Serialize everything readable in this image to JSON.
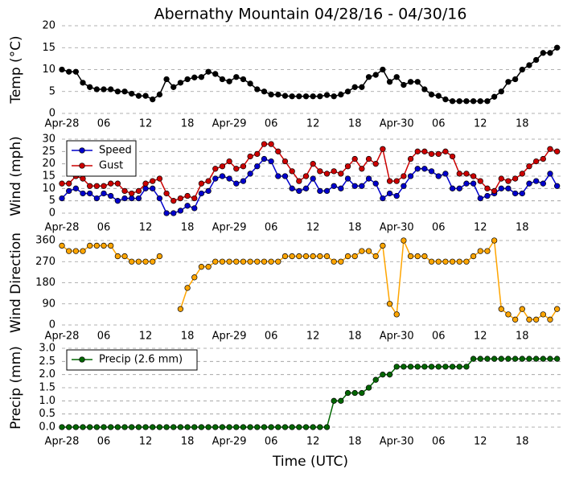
{
  "chart_data": [
    {
      "type": "line",
      "title": "Abernathy Mountain 04/28/16 - 04/30/16",
      "ylabel": "Temp (°C)",
      "x": [
        0,
        1,
        2,
        3,
        4,
        5,
        6,
        7,
        8,
        9,
        10,
        11,
        12,
        13,
        14,
        15,
        16,
        17,
        18,
        19,
        20,
        21,
        22,
        23,
        24,
        25,
        26,
        27,
        28,
        29,
        30,
        31,
        32,
        33,
        34,
        35,
        36,
        37,
        38,
        39,
        40,
        41,
        42,
        43,
        44,
        45,
        46,
        47,
        48,
        49,
        50,
        51,
        52,
        53,
        54,
        55,
        56,
        57,
        58,
        59,
        60,
        61,
        62,
        63,
        64,
        65,
        66,
        67,
        68,
        69,
        70,
        71
      ],
      "values": [
        10,
        9.5,
        9.5,
        7,
        6,
        5.5,
        5.5,
        5.5,
        5,
        5,
        4.5,
        4,
        4,
        3.2,
        4.3,
        7.8,
        6,
        7,
        7.8,
        8.2,
        8.3,
        9.5,
        9,
        7.8,
        7.3,
        8.3,
        7.8,
        6.8,
        5.5,
        5,
        4.3,
        4.3,
        4,
        3.9,
        3.9,
        3.9,
        3.9,
        3.9,
        4.2,
        3.9,
        4.3,
        5,
        6,
        6,
        8.3,
        8.8,
        10,
        7.2,
        8.3,
        6.5,
        7.2,
        7.2,
        5.5,
        4.3,
        4,
        3.2,
        2.8,
        2.8,
        2.8,
        2.8,
        2.8,
        2.8,
        3.8,
        5,
        7.2,
        7.8,
        10,
        11,
        12.2,
        13.8,
        13.8,
        15
      ],
      "color": "#000000",
      "xlim": [
        0,
        71.5
      ],
      "ylim": [
        0,
        20
      ],
      "yticks": [
        0,
        5,
        10,
        15,
        20
      ],
      "xticks": [
        {
          "value": 0,
          "label": "Apr-28"
        },
        {
          "value": 6,
          "label": "06"
        },
        {
          "value": 12,
          "label": "12"
        },
        {
          "value": 18,
          "label": "18"
        },
        {
          "value": 24,
          "label": "Apr-29"
        },
        {
          "value": 30,
          "label": "06"
        },
        {
          "value": 36,
          "label": "12"
        },
        {
          "value": 42,
          "label": "18"
        },
        {
          "value": 48,
          "label": "Apr-30"
        },
        {
          "value": 54,
          "label": "06"
        },
        {
          "value": 60,
          "label": "12"
        },
        {
          "value": 66,
          "label": "18"
        }
      ],
      "grid": true
    },
    {
      "type": "line",
      "ylabel": "Wind (mph)",
      "x": [
        0,
        1,
        2,
        3,
        4,
        5,
        6,
        7,
        8,
        9,
        10,
        11,
        12,
        13,
        14,
        15,
        16,
        17,
        18,
        19,
        20,
        21,
        22,
        23,
        24,
        25,
        26,
        27,
        28,
        29,
        30,
        31,
        32,
        33,
        34,
        35,
        36,
        37,
        38,
        39,
        40,
        41,
        42,
        43,
        44,
        45,
        46,
        47,
        48,
        49,
        50,
        51,
        52,
        53,
        54,
        55,
        56,
        57,
        58,
        59,
        60,
        61,
        62,
        63,
        64,
        65,
        66,
        67,
        68,
        69,
        70,
        71
      ],
      "series": [
        {
          "name": "Speed",
          "color": "#0000cc",
          "values": [
            6,
            9,
            10,
            8,
            8,
            6,
            8,
            7,
            5,
            6,
            6,
            6,
            10,
            10,
            6,
            0,
            0,
            1,
            3,
            2,
            8,
            9,
            14,
            15,
            14,
            12,
            13,
            16,
            19,
            22,
            21,
            15,
            15,
            10,
            9,
            10,
            14,
            9,
            9,
            11,
            10,
            14,
            11,
            11,
            14,
            12,
            6,
            8,
            7,
            11,
            15,
            18,
            18,
            17,
            15,
            16,
            10,
            10,
            12,
            12,
            6,
            7,
            8,
            10,
            10,
            8,
            8,
            12,
            13,
            12,
            16,
            11
          ]
        },
        {
          "name": "Gust",
          "color": "#cc0000",
          "values": [
            12,
            12,
            15,
            14,
            11,
            11,
            11,
            12,
            12,
            9,
            8,
            9,
            12,
            13,
            14,
            8,
            5,
            6,
            7,
            6,
            12,
            13,
            18,
            19,
            21,
            18,
            19,
            23,
            24,
            28,
            28,
            25,
            21,
            17,
            13,
            15,
            20,
            17,
            16,
            17,
            16,
            19,
            22,
            18,
            22,
            20,
            26,
            13,
            13,
            15,
            22,
            25,
            25,
            24,
            24,
            25,
            23,
            16,
            16,
            15,
            13,
            10,
            9,
            14,
            13,
            14,
            16,
            19,
            21,
            22,
            26,
            25
          ]
        }
      ],
      "xlim": [
        0,
        71.5
      ],
      "ylim": [
        0,
        30
      ],
      "yticks": [
        0,
        5,
        10,
        15,
        20,
        25,
        30
      ],
      "xticks": [
        {
          "value": 0,
          "label": "Apr-28"
        },
        {
          "value": 6,
          "label": "06"
        },
        {
          "value": 12,
          "label": "12"
        },
        {
          "value": 18,
          "label": "18"
        },
        {
          "value": 24,
          "label": "Apr-29"
        },
        {
          "value": 30,
          "label": "06"
        },
        {
          "value": 36,
          "label": "12"
        },
        {
          "value": 42,
          "label": "18"
        },
        {
          "value": 48,
          "label": "Apr-30"
        },
        {
          "value": 54,
          "label": "06"
        },
        {
          "value": 60,
          "label": "12"
        },
        {
          "value": 66,
          "label": "18"
        }
      ],
      "grid": true,
      "legend": "upper left"
    },
    {
      "type": "line",
      "ylabel": "Wind Direction",
      "x": [
        0,
        1,
        2,
        3,
        4,
        5,
        6,
        7,
        8,
        9,
        10,
        11,
        12,
        13,
        14,
        15,
        16,
        17,
        18,
        19,
        20,
        21,
        22,
        23,
        24,
        25,
        26,
        27,
        28,
        29,
        30,
        31,
        32,
        33,
        34,
        35,
        36,
        37,
        38,
        39,
        40,
        41,
        42,
        43,
        44,
        45,
        46,
        47,
        48,
        49,
        50,
        51,
        52,
        53,
        54,
        55,
        56,
        57,
        58,
        59,
        60,
        61,
        62,
        63,
        64,
        65,
        66,
        67,
        68,
        69,
        70,
        71
      ],
      "values": [
        338,
        315,
        315,
        315,
        338,
        338,
        338,
        338,
        293,
        293,
        270,
        270,
        270,
        270,
        293,
        null,
        null,
        68,
        158,
        203,
        248,
        248,
        270,
        270,
        270,
        270,
        270,
        270,
        270,
        270,
        270,
        270,
        293,
        293,
        293,
        293,
        293,
        293,
        293,
        270,
        270,
        293,
        293,
        315,
        315,
        293,
        338,
        90,
        45,
        360,
        293,
        293,
        293,
        270,
        270,
        270,
        270,
        270,
        270,
        293,
        315,
        315,
        360,
        68,
        45,
        23,
        68,
        23,
        23,
        45,
        23,
        68
      ],
      "color": "#ffa500",
      "xlim": [
        0,
        71.5
      ],
      "ylim": [
        0,
        360
      ],
      "yticks": [
        0,
        90,
        180,
        270,
        360
      ],
      "xticks": [
        {
          "value": 0,
          "label": "Apr-28"
        },
        {
          "value": 6,
          "label": "06"
        },
        {
          "value": 12,
          "label": "12"
        },
        {
          "value": 18,
          "label": "18"
        },
        {
          "value": 24,
          "label": "Apr-29"
        },
        {
          "value": 30,
          "label": "06"
        },
        {
          "value": 36,
          "label": "12"
        },
        {
          "value": 42,
          "label": "18"
        },
        {
          "value": 48,
          "label": "Apr-30"
        },
        {
          "value": 54,
          "label": "06"
        },
        {
          "value": 60,
          "label": "12"
        },
        {
          "value": 66,
          "label": "18"
        }
      ],
      "grid": true
    },
    {
      "type": "line",
      "ylabel": "Precip (mm)",
      "xlabel": "Time (UTC)",
      "x": [
        0,
        1,
        2,
        3,
        4,
        5,
        6,
        7,
        8,
        9,
        10,
        11,
        12,
        13,
        14,
        15,
        16,
        17,
        18,
        19,
        20,
        21,
        22,
        23,
        24,
        25,
        26,
        27,
        28,
        29,
        30,
        31,
        32,
        33,
        34,
        35,
        36,
        37,
        38,
        39,
        40,
        41,
        42,
        43,
        44,
        45,
        46,
        47,
        48,
        49,
        50,
        51,
        52,
        53,
        54,
        55,
        56,
        57,
        58,
        59,
        60,
        61,
        62,
        63,
        64,
        65,
        66,
        67,
        68,
        69,
        70,
        71
      ],
      "series": [
        {
          "name": "Precip (2.6 mm)",
          "color": "#006600",
          "values": [
            0,
            0,
            0,
            0,
            0,
            0,
            0,
            0,
            0,
            0,
            0,
            0,
            0,
            0,
            0,
            0,
            0,
            0,
            0,
            0,
            0,
            0,
            0,
            0,
            0,
            0,
            0,
            0,
            0,
            0,
            0,
            0,
            0,
            0,
            0,
            0,
            0,
            0,
            0,
            1.0,
            1.0,
            1.3,
            1.3,
            1.3,
            1.5,
            1.8,
            2.0,
            2.0,
            2.3,
            2.3,
            2.3,
            2.3,
            2.3,
            2.3,
            2.3,
            2.3,
            2.3,
            2.3,
            2.3,
            2.6,
            2.6,
            2.6,
            2.6,
            2.6,
            2.6,
            2.6,
            2.6,
            2.6,
            2.6,
            2.6,
            2.6,
            2.6
          ]
        }
      ],
      "xlim": [
        0,
        71.5
      ],
      "ylim": [
        0,
        3
      ],
      "yticks": [
        {
          "value": 0,
          "label": "0.0"
        },
        {
          "value": 0.5,
          "label": "0.5"
        },
        {
          "value": 1,
          "label": "1.0"
        },
        {
          "value": 1.5,
          "label": "1.5"
        },
        {
          "value": 2,
          "label": "2.0"
        },
        {
          "value": 2.5,
          "label": "2.5"
        },
        {
          "value": 3,
          "label": "3.0"
        }
      ],
      "xticks": [
        {
          "value": 0,
          "label": "Apr-28"
        },
        {
          "value": 6,
          "label": "06"
        },
        {
          "value": 12,
          "label": "12"
        },
        {
          "value": 18,
          "label": "18"
        },
        {
          "value": 24,
          "label": "Apr-29"
        },
        {
          "value": 30,
          "label": "06"
        },
        {
          "value": 36,
          "label": "12"
        },
        {
          "value": 42,
          "label": "18"
        },
        {
          "value": 48,
          "label": "Apr-30"
        },
        {
          "value": 54,
          "label": "06"
        },
        {
          "value": 60,
          "label": "12"
        },
        {
          "value": 66,
          "label": "18"
        }
      ],
      "grid": true,
      "legend": "upper left"
    }
  ]
}
